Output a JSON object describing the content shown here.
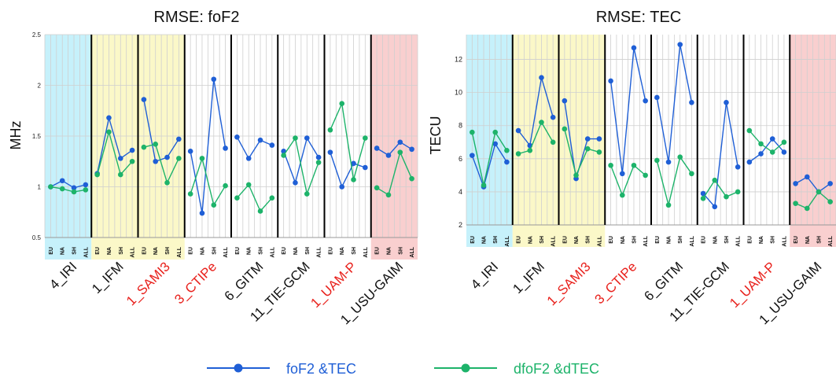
{
  "legend": {
    "items": [
      {
        "label": "foF2 &TEC",
        "color": "#1f5fd6"
      },
      {
        "label": "dfoF2 &dTEC",
        "color": "#1db36a"
      }
    ]
  },
  "colors": {
    "series1": "#1f5fd6",
    "series2": "#1db36a",
    "highlight_cyan": "#c6f1fb",
    "highlight_yellow": "#fbf8c8",
    "highlight_red": "#f9cfcf",
    "label_red": "#e8211c",
    "label_black": "#111111"
  },
  "chart_data": [
    {
      "type": "line",
      "title": "RMSE: foF2",
      "ylabel": "MHz",
      "xlabel": "",
      "ylim": [
        0.5,
        2.5
      ],
      "yticks": [
        0.5,
        1,
        1.5,
        2,
        2.5
      ],
      "grid": true,
      "sub_categories": [
        "EU",
        "NA",
        "SH",
        "ALL"
      ],
      "groups": [
        {
          "name": "4_IRI",
          "highlight": "cyan",
          "label_color": "black",
          "series": [
            {
              "values": [
                1.0,
                1.06,
                0.99,
                1.02
              ]
            },
            {
              "values": [
                1.0,
                0.98,
                0.95,
                0.97
              ]
            }
          ]
        },
        {
          "name": "1_IFM",
          "highlight": "yellow",
          "label_color": "black",
          "series": [
            {
              "values": [
                1.13,
                1.68,
                1.28,
                1.36
              ]
            },
            {
              "values": [
                1.12,
                1.54,
                1.12,
                1.25
              ]
            }
          ]
        },
        {
          "name": "1_SAMI3",
          "highlight": "yellow",
          "label_color": "red",
          "series": [
            {
              "values": [
                1.86,
                1.25,
                1.29,
                1.47
              ]
            },
            {
              "values": [
                1.39,
                1.42,
                1.04,
                1.28
              ]
            }
          ]
        },
        {
          "name": "3_CTIPe",
          "highlight": "none",
          "label_color": "red",
          "series": [
            {
              "values": [
                1.35,
                0.74,
                2.06,
                1.38
              ]
            },
            {
              "values": [
                0.93,
                1.28,
                0.82,
                1.01
              ]
            }
          ]
        },
        {
          "name": "6_GITM",
          "highlight": "none",
          "label_color": "black",
          "series": [
            {
              "values": [
                1.49,
                1.28,
                1.46,
                1.41
              ]
            },
            {
              "values": [
                0.89,
                1.02,
                0.76,
                0.89
              ]
            }
          ]
        },
        {
          "name": "11_TIE-GCM",
          "highlight": "none",
          "label_color": "black",
          "series": [
            {
              "values": [
                1.35,
                1.04,
                1.48,
                1.29
              ]
            },
            {
              "values": [
                1.31,
                1.48,
                0.93,
                1.24
              ]
            }
          ]
        },
        {
          "name": "1_UAM-P",
          "highlight": "none",
          "label_color": "red",
          "series": [
            {
              "values": [
                1.34,
                1.0,
                1.23,
                1.19
              ]
            },
            {
              "values": [
                1.56,
                1.82,
                1.07,
                1.48
              ]
            }
          ]
        },
        {
          "name": "1_USU-GAIM",
          "highlight": "red",
          "label_color": "black",
          "series": [
            {
              "values": [
                1.38,
                1.31,
                1.44,
                1.37
              ]
            },
            {
              "values": [
                0.99,
                0.92,
                1.34,
                1.08
              ]
            }
          ]
        }
      ]
    },
    {
      "type": "line",
      "title": "RMSE: TEC",
      "ylabel": "TECU",
      "xlabel": "",
      "ylim": [
        2,
        13.5
      ],
      "yticks": [
        2,
        4,
        6,
        8,
        10,
        12
      ],
      "grid": true,
      "sub_categories": [
        "EU",
        "NA",
        "SH",
        "ALL"
      ],
      "groups": [
        {
          "name": "4_IRI",
          "highlight": "cyan",
          "label_color": "black",
          "series": [
            {
              "values": [
                6.2,
                4.3,
                6.9,
                5.8
              ]
            },
            {
              "values": [
                7.6,
                4.4,
                7.6,
                6.5
              ]
            }
          ]
        },
        {
          "name": "1_IFM",
          "highlight": "yellow",
          "label_color": "black",
          "series": [
            {
              "values": [
                7.7,
                6.8,
                10.9,
                8.5
              ]
            },
            {
              "values": [
                6.3,
                6.5,
                8.2,
                7.0
              ]
            }
          ]
        },
        {
          "name": "1_SAMI3",
          "highlight": "yellow",
          "label_color": "red",
          "series": [
            {
              "values": [
                9.5,
                4.8,
                7.2,
                7.2
              ]
            },
            {
              "values": [
                7.8,
                5.0,
                6.6,
                6.4
              ]
            }
          ]
        },
        {
          "name": "3_CTIPe",
          "highlight": "none",
          "label_color": "red",
          "series": [
            {
              "values": [
                10.7,
                5.1,
                12.7,
                9.5
              ]
            },
            {
              "values": [
                5.6,
                3.8,
                5.6,
                5.0
              ]
            }
          ]
        },
        {
          "name": "6_GITM",
          "highlight": "none",
          "label_color": "black",
          "series": [
            {
              "values": [
                9.7,
                5.8,
                12.9,
                9.4
              ]
            },
            {
              "values": [
                5.9,
                3.2,
                6.1,
                5.1
              ]
            }
          ]
        },
        {
          "name": "11_TIE-GCM",
          "highlight": "none",
          "label_color": "black",
          "series": [
            {
              "values": [
                3.9,
                3.1,
                9.4,
                5.5
              ]
            },
            {
              "values": [
                3.6,
                4.7,
                3.7,
                4.0
              ]
            }
          ]
        },
        {
          "name": "1_UAM-P",
          "highlight": "none",
          "label_color": "red",
          "series": [
            {
              "values": [
                5.8,
                6.3,
                7.2,
                6.4
              ]
            },
            {
              "values": [
                7.7,
                6.9,
                6.4,
                7.0
              ]
            }
          ]
        },
        {
          "name": "1_USU-GAIM",
          "highlight": "red",
          "label_color": "black",
          "series": [
            {
              "values": [
                4.5,
                4.9,
                4.0,
                4.5
              ]
            },
            {
              "values": [
                3.3,
                3.0,
                4.0,
                3.4
              ]
            }
          ]
        }
      ]
    }
  ]
}
